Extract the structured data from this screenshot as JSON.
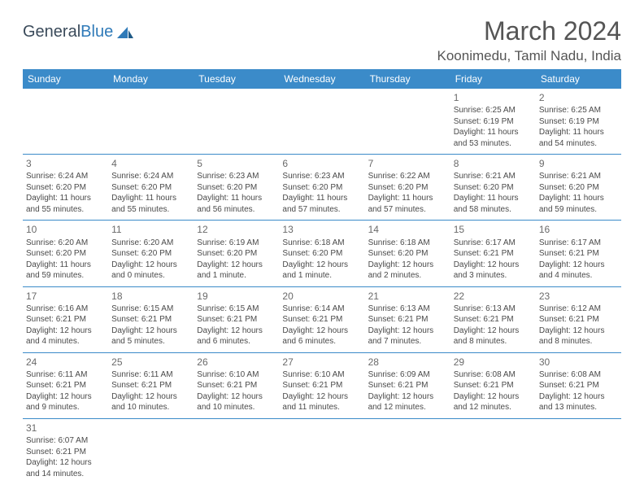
{
  "logo": {
    "text1": "General",
    "text2": "Blue"
  },
  "title": "March 2024",
  "location": "Koonimedu, Tamil Nadu, India",
  "colors": {
    "header_bg": "#3b8bc9",
    "header_text": "#ffffff",
    "body_bg": "#ffffff",
    "text": "#4a4a4a",
    "title_text": "#555555",
    "border": "#3b8bc9"
  },
  "weekdays": [
    "Sunday",
    "Monday",
    "Tuesday",
    "Wednesday",
    "Thursday",
    "Friday",
    "Saturday"
  ],
  "weeks": [
    [
      null,
      null,
      null,
      null,
      null,
      {
        "n": "1",
        "sr": "Sunrise: 6:25 AM",
        "ss": "Sunset: 6:19 PM",
        "d1": "Daylight: 11 hours",
        "d2": "and 53 minutes."
      },
      {
        "n": "2",
        "sr": "Sunrise: 6:25 AM",
        "ss": "Sunset: 6:19 PM",
        "d1": "Daylight: 11 hours",
        "d2": "and 54 minutes."
      }
    ],
    [
      {
        "n": "3",
        "sr": "Sunrise: 6:24 AM",
        "ss": "Sunset: 6:20 PM",
        "d1": "Daylight: 11 hours",
        "d2": "and 55 minutes."
      },
      {
        "n": "4",
        "sr": "Sunrise: 6:24 AM",
        "ss": "Sunset: 6:20 PM",
        "d1": "Daylight: 11 hours",
        "d2": "and 55 minutes."
      },
      {
        "n": "5",
        "sr": "Sunrise: 6:23 AM",
        "ss": "Sunset: 6:20 PM",
        "d1": "Daylight: 11 hours",
        "d2": "and 56 minutes."
      },
      {
        "n": "6",
        "sr": "Sunrise: 6:23 AM",
        "ss": "Sunset: 6:20 PM",
        "d1": "Daylight: 11 hours",
        "d2": "and 57 minutes."
      },
      {
        "n": "7",
        "sr": "Sunrise: 6:22 AM",
        "ss": "Sunset: 6:20 PM",
        "d1": "Daylight: 11 hours",
        "d2": "and 57 minutes."
      },
      {
        "n": "8",
        "sr": "Sunrise: 6:21 AM",
        "ss": "Sunset: 6:20 PM",
        "d1": "Daylight: 11 hours",
        "d2": "and 58 minutes."
      },
      {
        "n": "9",
        "sr": "Sunrise: 6:21 AM",
        "ss": "Sunset: 6:20 PM",
        "d1": "Daylight: 11 hours",
        "d2": "and 59 minutes."
      }
    ],
    [
      {
        "n": "10",
        "sr": "Sunrise: 6:20 AM",
        "ss": "Sunset: 6:20 PM",
        "d1": "Daylight: 11 hours",
        "d2": "and 59 minutes."
      },
      {
        "n": "11",
        "sr": "Sunrise: 6:20 AM",
        "ss": "Sunset: 6:20 PM",
        "d1": "Daylight: 12 hours",
        "d2": "and 0 minutes."
      },
      {
        "n": "12",
        "sr": "Sunrise: 6:19 AM",
        "ss": "Sunset: 6:20 PM",
        "d1": "Daylight: 12 hours",
        "d2": "and 1 minute."
      },
      {
        "n": "13",
        "sr": "Sunrise: 6:18 AM",
        "ss": "Sunset: 6:20 PM",
        "d1": "Daylight: 12 hours",
        "d2": "and 1 minute."
      },
      {
        "n": "14",
        "sr": "Sunrise: 6:18 AM",
        "ss": "Sunset: 6:20 PM",
        "d1": "Daylight: 12 hours",
        "d2": "and 2 minutes."
      },
      {
        "n": "15",
        "sr": "Sunrise: 6:17 AM",
        "ss": "Sunset: 6:21 PM",
        "d1": "Daylight: 12 hours",
        "d2": "and 3 minutes."
      },
      {
        "n": "16",
        "sr": "Sunrise: 6:17 AM",
        "ss": "Sunset: 6:21 PM",
        "d1": "Daylight: 12 hours",
        "d2": "and 4 minutes."
      }
    ],
    [
      {
        "n": "17",
        "sr": "Sunrise: 6:16 AM",
        "ss": "Sunset: 6:21 PM",
        "d1": "Daylight: 12 hours",
        "d2": "and 4 minutes."
      },
      {
        "n": "18",
        "sr": "Sunrise: 6:15 AM",
        "ss": "Sunset: 6:21 PM",
        "d1": "Daylight: 12 hours",
        "d2": "and 5 minutes."
      },
      {
        "n": "19",
        "sr": "Sunrise: 6:15 AM",
        "ss": "Sunset: 6:21 PM",
        "d1": "Daylight: 12 hours",
        "d2": "and 6 minutes."
      },
      {
        "n": "20",
        "sr": "Sunrise: 6:14 AM",
        "ss": "Sunset: 6:21 PM",
        "d1": "Daylight: 12 hours",
        "d2": "and 6 minutes."
      },
      {
        "n": "21",
        "sr": "Sunrise: 6:13 AM",
        "ss": "Sunset: 6:21 PM",
        "d1": "Daylight: 12 hours",
        "d2": "and 7 minutes."
      },
      {
        "n": "22",
        "sr": "Sunrise: 6:13 AM",
        "ss": "Sunset: 6:21 PM",
        "d1": "Daylight: 12 hours",
        "d2": "and 8 minutes."
      },
      {
        "n": "23",
        "sr": "Sunrise: 6:12 AM",
        "ss": "Sunset: 6:21 PM",
        "d1": "Daylight: 12 hours",
        "d2": "and 8 minutes."
      }
    ],
    [
      {
        "n": "24",
        "sr": "Sunrise: 6:11 AM",
        "ss": "Sunset: 6:21 PM",
        "d1": "Daylight: 12 hours",
        "d2": "and 9 minutes."
      },
      {
        "n": "25",
        "sr": "Sunrise: 6:11 AM",
        "ss": "Sunset: 6:21 PM",
        "d1": "Daylight: 12 hours",
        "d2": "and 10 minutes."
      },
      {
        "n": "26",
        "sr": "Sunrise: 6:10 AM",
        "ss": "Sunset: 6:21 PM",
        "d1": "Daylight: 12 hours",
        "d2": "and 10 minutes."
      },
      {
        "n": "27",
        "sr": "Sunrise: 6:10 AM",
        "ss": "Sunset: 6:21 PM",
        "d1": "Daylight: 12 hours",
        "d2": "and 11 minutes."
      },
      {
        "n": "28",
        "sr": "Sunrise: 6:09 AM",
        "ss": "Sunset: 6:21 PM",
        "d1": "Daylight: 12 hours",
        "d2": "and 12 minutes."
      },
      {
        "n": "29",
        "sr": "Sunrise: 6:08 AM",
        "ss": "Sunset: 6:21 PM",
        "d1": "Daylight: 12 hours",
        "d2": "and 12 minutes."
      },
      {
        "n": "30",
        "sr": "Sunrise: 6:08 AM",
        "ss": "Sunset: 6:21 PM",
        "d1": "Daylight: 12 hours",
        "d2": "and 13 minutes."
      }
    ],
    [
      {
        "n": "31",
        "sr": "Sunrise: 6:07 AM",
        "ss": "Sunset: 6:21 PM",
        "d1": "Daylight: 12 hours",
        "d2": "and 14 minutes."
      },
      null,
      null,
      null,
      null,
      null,
      null
    ]
  ]
}
